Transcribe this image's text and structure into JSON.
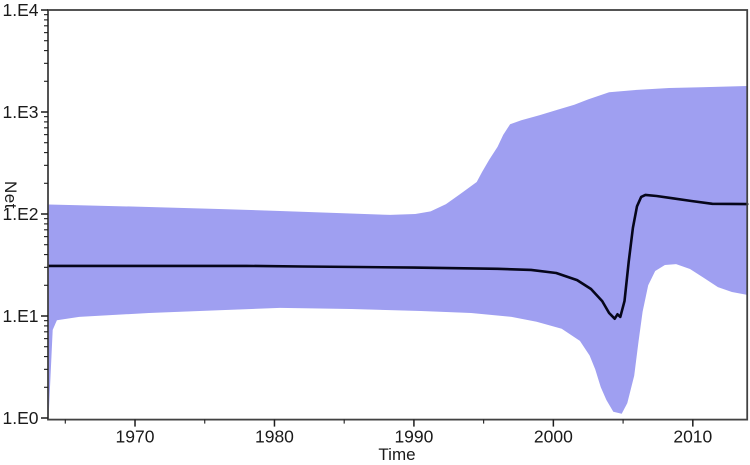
{
  "chart_data": {
    "type": "area",
    "title": "",
    "xlabel": "Time",
    "ylabel": "Net",
    "x_axis": {
      "min": 1963.76,
      "max": 2013.9,
      "major_ticks": [
        {
          "label": "1970",
          "value": 1970
        },
        {
          "label": "1980",
          "value": 1980
        },
        {
          "label": "1990",
          "value": 1990
        },
        {
          "label": "2000",
          "value": 2000
        },
        {
          "label": "2010",
          "value": 2010
        }
      ],
      "minor_ticks": [
        1965,
        1975,
        1985,
        1995,
        2005
      ]
    },
    "y_axis": {
      "scale": "log10",
      "min": 1,
      "max": 10000,
      "major_ticks": [
        {
          "label": "1.E0",
          "value": 1
        },
        {
          "label": "1.E1",
          "value": 10
        },
        {
          "label": "1.E2",
          "value": 100
        },
        {
          "label": "1.E3",
          "value": 1000
        },
        {
          "label": "1.E4",
          "value": 10000
        }
      ],
      "minor_tick_multipliers": [
        2,
        3,
        4,
        5,
        6,
        7,
        8,
        9
      ]
    },
    "legend": null,
    "grid": false,
    "colors": {
      "band": "#9f9ff1",
      "median_line": "#06061a",
      "axis": "#424242",
      "tick": "#1c1c1c",
      "text": "#1a1a1a",
      "background": "#ffffff"
    },
    "series": [
      {
        "name": "median",
        "points": [
          [
            1963.8,
            31
          ],
          [
            1966,
            31
          ],
          [
            1970,
            31
          ],
          [
            1974,
            31
          ],
          [
            1978,
            31
          ],
          [
            1982,
            30.6
          ],
          [
            1986,
            30.2
          ],
          [
            1990,
            29.8
          ],
          [
            1993,
            29.4
          ],
          [
            1996,
            29
          ],
          [
            1998.4,
            28.3
          ],
          [
            2000.2,
            26.4
          ],
          [
            2001.7,
            22.5
          ],
          [
            2002.7,
            18.4
          ],
          [
            2003.5,
            14
          ],
          [
            2004.0,
            10.7
          ],
          [
            2004.4,
            9.4
          ],
          [
            2004.6,
            10.4
          ],
          [
            2004.8,
            9.8
          ],
          [
            2005.1,
            14
          ],
          [
            2005.4,
            34
          ],
          [
            2005.7,
            73
          ],
          [
            2006.0,
            119
          ],
          [
            2006.3,
            147
          ],
          [
            2006.6,
            154
          ],
          [
            2007.4,
            150
          ],
          [
            2008.5,
            143
          ],
          [
            2009.9,
            134
          ],
          [
            2011.4,
            126
          ],
          [
            2013.9,
            125
          ]
        ]
      },
      {
        "name": "upper_hpd",
        "points": [
          [
            1963.8,
            124
          ],
          [
            1966,
            122
          ],
          [
            1971,
            117
          ],
          [
            1976,
            112
          ],
          [
            1980.4,
            107
          ],
          [
            1984.7,
            102
          ],
          [
            1988.3,
            98
          ],
          [
            1990.1,
            100
          ],
          [
            1991.2,
            106
          ],
          [
            1992.3,
            125
          ],
          [
            1993.4,
            160
          ],
          [
            1994.5,
            206
          ],
          [
            1994.9,
            259
          ],
          [
            1995.4,
            340
          ],
          [
            1996.0,
            456
          ],
          [
            1996.4,
            596
          ],
          [
            1996.9,
            760
          ],
          [
            1997.7,
            830
          ],
          [
            1999.0,
            930
          ],
          [
            2000.3,
            1050
          ],
          [
            2001.5,
            1180
          ],
          [
            2002.5,
            1330
          ],
          [
            2004.0,
            1560
          ],
          [
            2005.8,
            1640
          ],
          [
            2008.3,
            1720
          ],
          [
            2010.6,
            1750
          ],
          [
            2013.9,
            1800
          ]
        ]
      },
      {
        "name": "lower_hpd",
        "points": [
          [
            1963.8,
            1.02
          ],
          [
            1964.1,
            7.3
          ],
          [
            1964.4,
            9.1
          ],
          [
            1966,
            9.8
          ],
          [
            1971,
            10.7
          ],
          [
            1976,
            11.4
          ],
          [
            1980.4,
            12.0
          ],
          [
            1985.5,
            11.7
          ],
          [
            1990.5,
            11.2
          ],
          [
            1994.1,
            10.7
          ],
          [
            1997.0,
            9.8
          ],
          [
            1998.8,
            8.8
          ],
          [
            2000.6,
            7.5
          ],
          [
            2001.9,
            5.7
          ],
          [
            2002.6,
            4.1
          ],
          [
            2003.0,
            3.0
          ],
          [
            2003.4,
            2.0
          ],
          [
            2003.8,
            1.5
          ],
          [
            2004.3,
            1.15
          ],
          [
            2004.9,
            1.1
          ],
          [
            2005.3,
            1.4
          ],
          [
            2005.8,
            2.6
          ],
          [
            2006.1,
            5.5
          ],
          [
            2006.4,
            11
          ],
          [
            2006.8,
            20
          ],
          [
            2007.3,
            27.6
          ],
          [
            2008.0,
            31.6
          ],
          [
            2008.8,
            32.3
          ],
          [
            2009.8,
            28.9
          ],
          [
            2010.8,
            23.6
          ],
          [
            2011.8,
            19.2
          ],
          [
            2012.8,
            17.2
          ],
          [
            2013.9,
            16.1
          ]
        ]
      }
    ]
  }
}
